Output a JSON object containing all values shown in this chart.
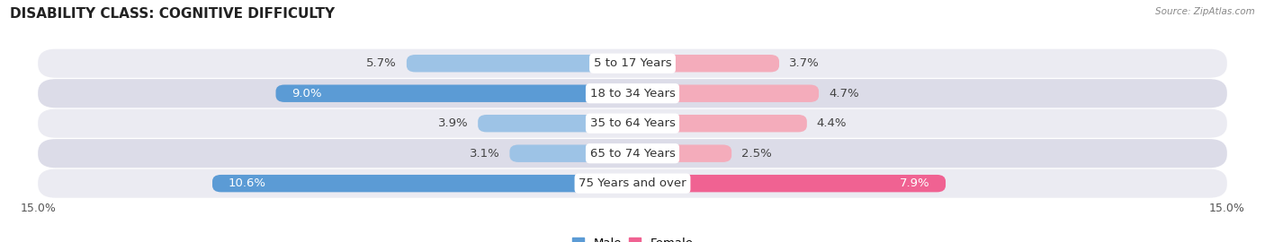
{
  "title": "DISABILITY CLASS: COGNITIVE DIFFICULTY",
  "source": "Source: ZipAtlas.com",
  "categories": [
    "5 to 17 Years",
    "18 to 34 Years",
    "35 to 64 Years",
    "65 to 74 Years",
    "75 Years and over"
  ],
  "male_values": [
    5.7,
    9.0,
    3.9,
    3.1,
    10.6
  ],
  "female_values": [
    3.7,
    4.7,
    4.4,
    2.5,
    7.9
  ],
  "xlim": 15.0,
  "male_color_strong": "#5b9bd5",
  "male_color_light": "#9dc3e6",
  "female_color_strong": "#f06292",
  "female_color_light": "#f4acbb",
  "row_bg_odd": "#ebebf2",
  "row_bg_even": "#dcdce8",
  "bar_height": 0.58,
  "font_size_labels": 9.5,
  "font_size_title": 11,
  "font_size_axis": 9,
  "legend_male_color": "#5b9bd5",
  "legend_female_color": "#f06292"
}
